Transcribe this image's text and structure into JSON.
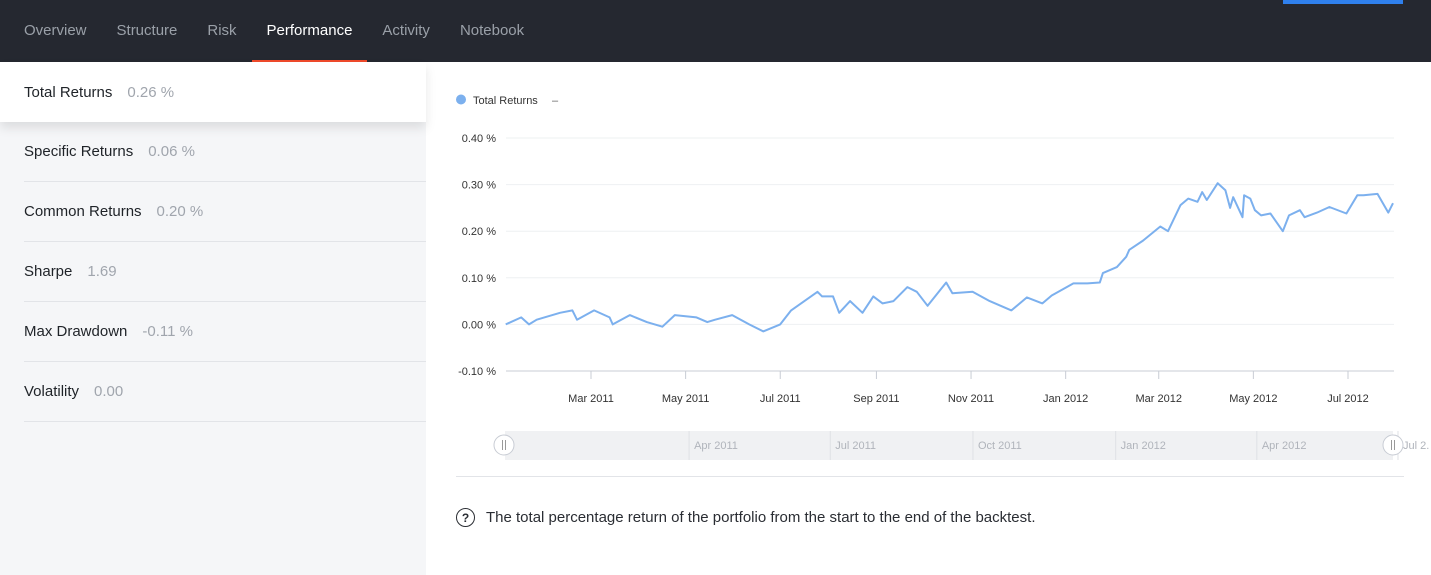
{
  "nav": {
    "tabs": [
      {
        "label": "Overview"
      },
      {
        "label": "Structure"
      },
      {
        "label": "Risk"
      },
      {
        "label": "Performance",
        "active": true
      },
      {
        "label": "Activity"
      },
      {
        "label": "Notebook"
      }
    ]
  },
  "metrics": [
    {
      "label": "Total Returns",
      "value": "0.26 %",
      "active": true
    },
    {
      "label": "Specific Returns",
      "value": "0.06 %"
    },
    {
      "label": "Common Returns",
      "value": "0.20 %"
    },
    {
      "label": "Sharpe",
      "value": "1.69"
    },
    {
      "label": "Max Drawdown",
      "value": "-0.11 %"
    },
    {
      "label": "Volatility",
      "value": "0.00"
    }
  ],
  "help_text": "The total percentage return of the portfolio from the start to the end of the backtest.",
  "colors": {
    "accent": "#ef4a2b",
    "series": "#7cb0ee",
    "topbar": "#252830",
    "button": "#2f80ed"
  },
  "chart_data": {
    "type": "line",
    "legend": {
      "position": "top-left",
      "entries": [
        {
          "name": "Total Returns",
          "value": "–"
        }
      ]
    },
    "ylim": [
      -0.1,
      0.4
    ],
    "yticks": [
      "0.40 %",
      "0.30 %",
      "0.20 %",
      "0.10 %",
      "0.00 %",
      "-0.10 %"
    ],
    "ytick_values": [
      0.4,
      0.3,
      0.2,
      0.1,
      0.0,
      -0.1
    ],
    "xticks": [
      "Mar 2011",
      "May 2011",
      "Jul 2011",
      "Sep 2011",
      "Nov 2011",
      "Jan 2012",
      "Mar 2012",
      "May 2012",
      "Jul 2012"
    ],
    "xtick_dates": [
      "2011-03-01",
      "2011-05-01",
      "2011-07-01",
      "2011-09-01",
      "2011-11-01",
      "2012-01-01",
      "2012-03-01",
      "2012-05-01",
      "2012-07-01"
    ],
    "grid": true,
    "navigator": {
      "labels": [
        "Apr 2011",
        "Jul 2011",
        "Oct 2011",
        "Jan 2012",
        "Apr 2012",
        "Jul 2."
      ],
      "label_dates": [
        "2011-04-01",
        "2011-07-01",
        "2011-10-01",
        "2012-01-01",
        "2012-04-01",
        "2012-07-01"
      ]
    },
    "series": [
      {
        "name": "Total Returns",
        "x": [
          "2011-01-05",
          "2011-01-15",
          "2011-01-20",
          "2011-01-25",
          "2011-02-09",
          "2011-02-17",
          "2011-02-20",
          "2011-03-03",
          "2011-03-13",
          "2011-03-15",
          "2011-03-26",
          "2011-04-06",
          "2011-04-16",
          "2011-04-24",
          "2011-05-08",
          "2011-05-15",
          "2011-05-20",
          "2011-05-31",
          "2011-06-11",
          "2011-06-20",
          "2011-07-01",
          "2011-07-08",
          "2011-07-25",
          "2011-07-28",
          "2011-08-04",
          "2011-08-08",
          "2011-08-15",
          "2011-08-23",
          "2011-08-30",
          "2011-09-05",
          "2011-09-12",
          "2011-09-21",
          "2011-09-27",
          "2011-10-04",
          "2011-10-16",
          "2011-10-20",
          "2011-11-02",
          "2011-11-13",
          "2011-11-27",
          "2011-12-07",
          "2011-12-17",
          "2011-12-23",
          "2012-01-06",
          "2012-01-15",
          "2012-01-23",
          "2012-01-25",
          "2012-02-03",
          "2012-02-09",
          "2012-02-11",
          "2012-02-20",
          "2012-03-02",
          "2012-03-07",
          "2012-03-15",
          "2012-03-20",
          "2012-03-26",
          "2012-03-29",
          "2012-04-01",
          "2012-04-08",
          "2012-04-13",
          "2012-04-16",
          "2012-04-18",
          "2012-04-24",
          "2012-04-25",
          "2012-04-29",
          "2012-05-02",
          "2012-05-06",
          "2012-05-12",
          "2012-05-20",
          "2012-05-24",
          "2012-05-31",
          "2012-06-03",
          "2012-06-11",
          "2012-06-19",
          "2012-06-30",
          "2012-07-07",
          "2012-07-11",
          "2012-07-20",
          "2012-07-27",
          "2012-07-30"
        ],
        "values": [
          0.0,
          0.015,
          0.0,
          0.01,
          0.025,
          0.03,
          0.01,
          0.03,
          0.015,
          0.0,
          0.02,
          0.005,
          -0.005,
          0.02,
          0.015,
          0.005,
          0.01,
          0.02,
          0.0,
          -0.015,
          0.0,
          0.03,
          0.07,
          0.06,
          0.06,
          0.025,
          0.05,
          0.025,
          0.06,
          0.045,
          0.05,
          0.08,
          0.07,
          0.04,
          0.09,
          0.067,
          0.07,
          0.05,
          0.03,
          0.058,
          0.045,
          0.062,
          0.088,
          0.088,
          0.09,
          0.11,
          0.123,
          0.145,
          0.16,
          0.18,
          0.21,
          0.2,
          0.256,
          0.27,
          0.263,
          0.284,
          0.267,
          0.303,
          0.288,
          0.25,
          0.273,
          0.23,
          0.277,
          0.27,
          0.245,
          0.234,
          0.238,
          0.2,
          0.234,
          0.245,
          0.23,
          0.24,
          0.252,
          0.238,
          0.277,
          0.277,
          0.28,
          0.24,
          0.26
        ]
      }
    ]
  }
}
